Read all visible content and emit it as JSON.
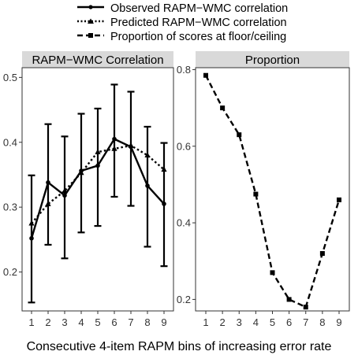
{
  "legend": {
    "position": "top",
    "items": [
      {
        "label": "Observed RAPM−WMC correlation",
        "line": "solid",
        "marker": "circle"
      },
      {
        "label": "Predicted RAPM−WMC correlation",
        "line": "dotted",
        "marker": "triangle"
      },
      {
        "label": "Proportion of scores at floor/ceiling",
        "line": "dashed",
        "marker": "square"
      }
    ]
  },
  "xlabel": "Consecutive 4-item RAPM bins of increasing error rate",
  "chart_data": [
    {
      "type": "line",
      "panel_title": "RAPM−WMC Correlation",
      "x": [
        1,
        2,
        3,
        4,
        5,
        6,
        7,
        8,
        9
      ],
      "xticks": [
        "1",
        "2",
        "3",
        "4",
        "5",
        "6",
        "7",
        "8",
        "9"
      ],
      "ylim": [
        0.14,
        0.515
      ],
      "yticks": [
        "0.2",
        "0.3",
        "0.4",
        "0.5"
      ],
      "grid": false,
      "series": [
        {
          "name": "Observed RAPM−WMC correlation",
          "line": "solid",
          "marker": "circle",
          "values": [
            0.252,
            0.338,
            0.318,
            0.356,
            0.364,
            0.405,
            0.393,
            0.333,
            0.305
          ],
          "error_low": [
            0.153,
            0.242,
            0.221,
            0.261,
            0.271,
            0.316,
            0.302,
            0.239,
            0.209
          ],
          "error_high": [
            0.349,
            0.428,
            0.409,
            0.444,
            0.452,
            0.489,
            0.478,
            0.424,
            0.399
          ]
        },
        {
          "name": "Predicted RAPM−WMC correlation",
          "line": "dotted",
          "marker": "triangle",
          "values": [
            0.275,
            0.305,
            0.325,
            0.353,
            0.385,
            0.39,
            0.395,
            0.38,
            0.358
          ]
        }
      ]
    },
    {
      "type": "line",
      "panel_title": "Proportion",
      "x": [
        1,
        2,
        3,
        4,
        5,
        6,
        7,
        8,
        9
      ],
      "xticks": [
        "1",
        "2",
        "3",
        "4",
        "5",
        "6",
        "7",
        "8",
        "9"
      ],
      "ylim": [
        0.17,
        0.805
      ],
      "yticks": [
        "0.2",
        "0.4",
        "0.6",
        "0.8"
      ],
      "grid": false,
      "series": [
        {
          "name": "Proportion of scores at floor/ceiling",
          "line": "dashed",
          "marker": "square",
          "values": [
            0.785,
            0.7,
            0.63,
            0.475,
            0.27,
            0.2,
            0.18,
            0.32,
            0.46
          ]
        }
      ]
    }
  ]
}
